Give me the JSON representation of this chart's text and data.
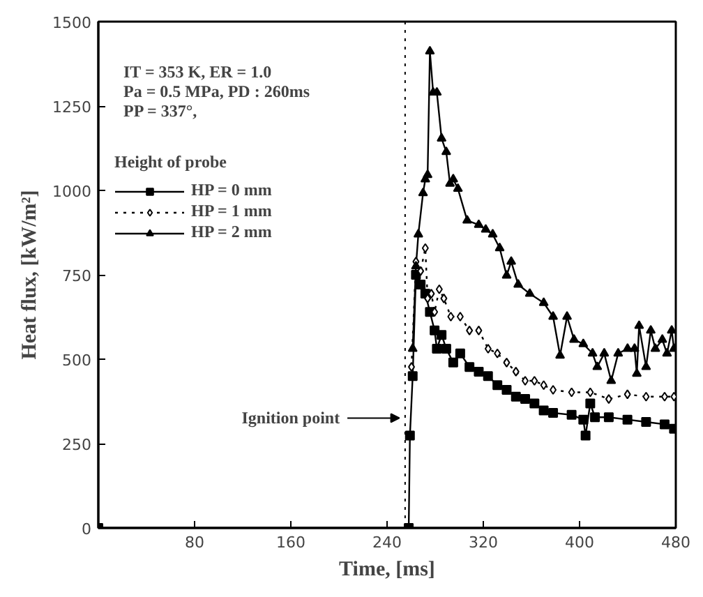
{
  "chart_data": {
    "type": "line",
    "xlabel": "Time, [ms]",
    "ylabel": "Heat flux, [kW/m²]",
    "legend_title": "Height of probe",
    "legend": "top left",
    "grid": false,
    "xlim": [
      0,
      480
    ],
    "ylim": [
      0,
      1500
    ],
    "xticks": [
      80,
      160,
      240,
      320,
      400,
      480
    ],
    "yticks": [
      0,
      250,
      500,
      750,
      1000,
      1250,
      1500
    ],
    "annotations": [
      "IT = 353 K,      ER = 1.0",
      "Pa = 0.5 MPa,  PD : 260ms",
      "PP = 337°,"
    ],
    "ref_lines": [
      {
        "axis": "x",
        "value": 255,
        "label": "Ignition point",
        "line_style": "dotted",
        "color": "#000000"
      }
    ],
    "series": [
      {
        "name": "HP = 0 mm",
        "color": "#000000",
        "marker": "square",
        "line_style": "solid",
        "x": [
          0,
          258,
          259,
          261.3,
          264,
          267.9,
          271.8,
          275.6,
          279.5,
          281.4,
          285.3,
          289.2,
          295,
          300.8,
          308.5,
          316.2,
          323.9,
          331.7,
          339.4,
          347.1,
          354.8,
          362.5,
          370.2,
          378,
          393.4,
          403.1,
          405,
          408.9,
          412.8,
          424.3,
          439.8,
          455.3,
          470.7,
          478.5
        ],
        "values": [
          0,
          0,
          274,
          450,
          750,
          721,
          694,
          640,
          585,
          531,
          572,
          531,
          490,
          517,
          477,
          463,
          450,
          423,
          409,
          389,
          382,
          369,
          348,
          341,
          335,
          321,
          274,
          369,
          328,
          328,
          321,
          314,
          307,
          294
        ]
      },
      {
        "name": "HP = 1 mm",
        "color": "#000000",
        "marker": "diamond",
        "line_style": "dotted",
        "x": [
          260.3,
          264,
          267.9,
          271.8,
          273.7,
          276.8,
          279.5,
          283.4,
          287.2,
          293,
          300.8,
          308.5,
          316.2,
          324,
          331.7,
          339.4,
          347.1,
          354.8,
          362.5,
          370.2,
          378,
          393.4,
          408.9,
          424.3,
          439.8,
          455.3,
          470.7,
          478.5
        ],
        "values": [
          477,
          789,
          761,
          829,
          680,
          694,
          640,
          707,
          680,
          626,
          626,
          585,
          585,
          531,
          517,
          490,
          463,
          436,
          436,
          423,
          409,
          402,
          402,
          382,
          396,
          389,
          389,
          389
        ]
      },
      {
        "name": "HP = 2 mm",
        "color": "#000000",
        "marker": "triangle",
        "line_style": "solid",
        "x": [
          261.3,
          264,
          266,
          269.9,
          271.8,
          273.7,
          275.6,
          278.3,
          281.4,
          285.3,
          289.2,
          292.3,
          295,
          298.9,
          306.6,
          316.2,
          322,
          327.8,
          333.6,
          339.4,
          343.2,
          349,
          358.6,
          370.2,
          378,
          383.8,
          389.6,
          395.4,
          403.1,
          410.8,
          414.7,
          420.5,
          426.3,
          432.1,
          439.9,
          445.7,
          447.6,
          449.5,
          455.3,
          459.2,
          463,
          468.8,
          472.7,
          476.6,
          478.5
        ],
        "values": [
          531,
          775,
          870,
          992,
          1033,
          1046,
          1412,
          1290,
          1290,
          1154,
          1114,
          1020,
          1033,
          1005,
          911,
          898,
          884,
          870,
          829,
          748,
          789,
          721,
          694,
          667,
          626,
          511,
          626,
          558,
          545,
          517,
          477,
          517,
          436,
          517,
          531,
          531,
          457,
          599,
          477,
          585,
          531,
          558,
          517,
          585,
          531
        ]
      }
    ]
  }
}
